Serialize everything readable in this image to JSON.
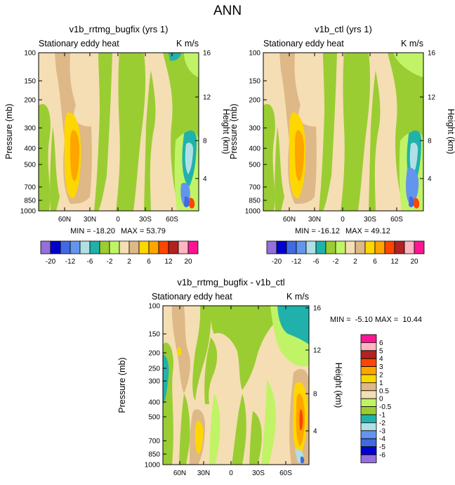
{
  "page_title": "ANN",
  "colors": {
    "le_m20": "#9370DB",
    "m20_m16": "#0000CD",
    "m16_m12": "#4169E1",
    "m12_m8": "#6495ED",
    "m8_m6": "#B0E0E6",
    "m6_m4": "#20B2AA",
    "m4_m2": "#9ACD32",
    "m2_0": "#C1F367",
    "z_2": "#F5DEB3",
    "p2_4": "#DEB887",
    "p4_6": "#FFD700",
    "p6_8": "#FFA500",
    "p8_12": "#FF4500",
    "p12_16": "#B22222",
    "p16_20": "#FFB6C1",
    "ge_20": "#FF1493"
  },
  "chart_data": [
    {
      "type": "heatmap",
      "title": "v1b_rrtmg_bugfix (yrs 1)",
      "left_label": "Stationary eddy heat",
      "units": "K m/s",
      "xlabel": "",
      "ylabel": "Pressure (mb)",
      "y2label": "Height (km)",
      "x_ticks": [
        "60N",
        "30N",
        "0",
        "30S",
        "60S"
      ],
      "y_ticks": [
        "100",
        "150",
        "200",
        "300",
        "400",
        "500",
        "700",
        "850",
        "1000"
      ],
      "y2_ticks": [
        "16",
        "12",
        "8",
        "4"
      ],
      "min_label": "MIN = -18.20",
      "max_label": "MAX = 53.79",
      "min": -18.2,
      "max": 53.79
    },
    {
      "type": "heatmap",
      "title": "v1b_ctl (yrs 1)",
      "left_label": "Stationary eddy heat",
      "units": "K m/s",
      "xlabel": "",
      "ylabel": "Pressure (mb)",
      "y2label": "Height (km)",
      "x_ticks": [
        "60N",
        "30N",
        "0",
        "30S",
        "60S"
      ],
      "y_ticks": [
        "100",
        "150",
        "200",
        "300",
        "400",
        "500",
        "700",
        "850",
        "1000"
      ],
      "y2_ticks": [
        "16",
        "12",
        "8",
        "4"
      ],
      "min_label": "MIN = -16.12",
      "max_label": "MAX = 49.12",
      "min": -16.12,
      "max": 49.12
    },
    {
      "type": "heatmap",
      "title": "v1b_rrtmg_bugfix - v1b_ctl",
      "left_label": "Stationary eddy heat",
      "units": "K m/s",
      "xlabel": "",
      "ylabel": "Pressure (mb)",
      "y2label": "Height (km)",
      "x_ticks": [
        "60N",
        "30N",
        "0",
        "30S",
        "60S"
      ],
      "y_ticks": [
        "100",
        "150",
        "200",
        "250",
        "300",
        "400",
        "500",
        "700",
        "850",
        "1000"
      ],
      "y2_ticks": [
        "16",
        "12",
        "8",
        "4"
      ],
      "min_label": "MIN =  -5.10",
      "max_label": "MAX =  10.44",
      "min": -5.1,
      "max": 10.44
    }
  ],
  "colorbar_top": {
    "labels": [
      "-20",
      "-12",
      "-6",
      "-2",
      "2",
      "6",
      "12",
      "20"
    ]
  },
  "colorbar_diff": {
    "labels": [
      "6",
      "5",
      "4",
      "3",
      "2",
      "1",
      "0.5",
      "0",
      "-0.5",
      "-1",
      "-2",
      "-3",
      "-4",
      "-5",
      "-6"
    ]
  }
}
